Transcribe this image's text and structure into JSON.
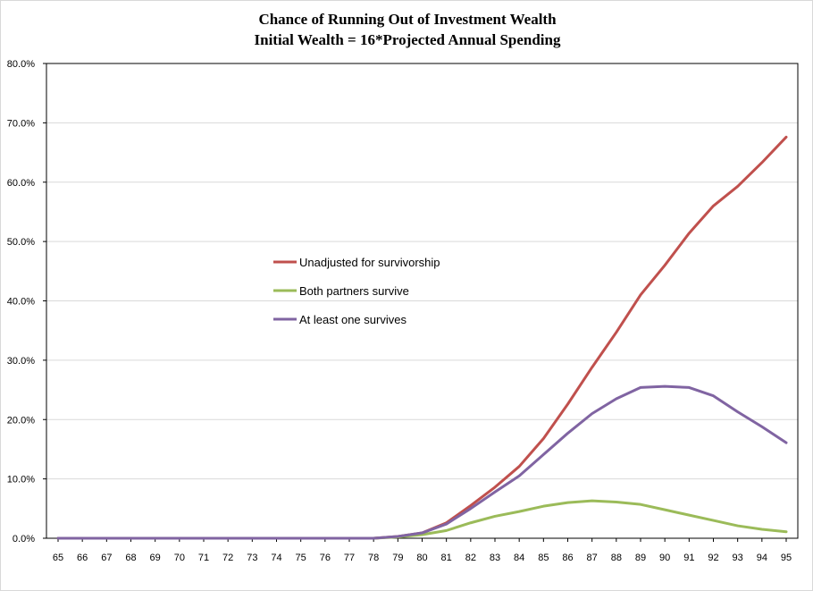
{
  "chart_data": {
    "type": "line",
    "title": "Chance of Running Out of Investment Wealth",
    "subtitle": "Initial Wealth = 16*Projected Annual Spending",
    "xlabel": "",
    "ylabel": "",
    "x": [
      65,
      66,
      67,
      68,
      69,
      70,
      71,
      72,
      73,
      74,
      75,
      76,
      77,
      78,
      79,
      80,
      81,
      82,
      83,
      84,
      85,
      86,
      87,
      88,
      89,
      90,
      91,
      92,
      93,
      94,
      95
    ],
    "ylim": [
      0,
      0.8
    ],
    "yticks": [
      0,
      0.1,
      0.2,
      0.3,
      0.4,
      0.5,
      0.6,
      0.7,
      0.8
    ],
    "ytick_labels": [
      "0.0%",
      "10.0%",
      "20.0%",
      "30.0%",
      "40.0%",
      "50.0%",
      "60.0%",
      "70.0%",
      "80.0%"
    ],
    "grid": "horizontal",
    "legend_position": "center-left inside plot",
    "series": [
      {
        "name": "Unadjusted for survivorship",
        "color": "#c0504d",
        "values": [
          0,
          0,
          0,
          0,
          0,
          0,
          0,
          0,
          0,
          0,
          0,
          0,
          0,
          0,
          0.003,
          0.009,
          0.026,
          0.055,
          0.086,
          0.121,
          0.168,
          0.226,
          0.288,
          0.347,
          0.41,
          0.46,
          0.514,
          0.56,
          0.593,
          0.633,
          0.676
        ]
      },
      {
        "name": "Both partners survive",
        "color": "#9bbb59",
        "values": [
          0,
          0,
          0,
          0,
          0,
          0,
          0,
          0,
          0,
          0,
          0,
          0,
          0,
          0,
          0.002,
          0.006,
          0.013,
          0.026,
          0.037,
          0.045,
          0.054,
          0.06,
          0.063,
          0.061,
          0.057,
          0.048,
          0.039,
          0.03,
          0.021,
          0.015,
          0.011
        ]
      },
      {
        "name": "At least one survives",
        "color": "#8064a2",
        "values": [
          0,
          0,
          0,
          0,
          0,
          0,
          0,
          0,
          0,
          0,
          0,
          0,
          0,
          0,
          0.003,
          0.009,
          0.024,
          0.05,
          0.078,
          0.105,
          0.141,
          0.177,
          0.21,
          0.235,
          0.254,
          0.256,
          0.254,
          0.24,
          0.213,
          0.188,
          0.161
        ]
      }
    ]
  }
}
